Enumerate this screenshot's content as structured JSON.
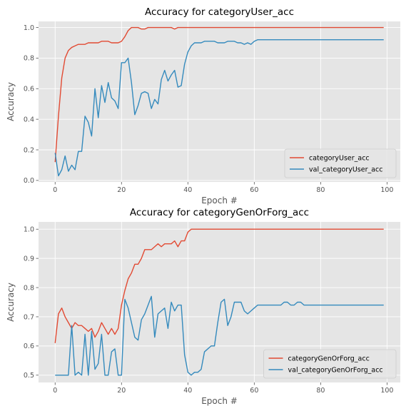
{
  "chart_data": [
    {
      "type": "line",
      "title": "Accuracy for categoryUser_acc",
      "xlabel": "Epoch #",
      "ylabel": "Accuracy",
      "xlim": [
        -5,
        104
      ],
      "ylim": [
        -0.01,
        1.04
      ],
      "xticks": [
        0,
        20,
        40,
        60,
        80,
        100
      ],
      "yticks": [
        0.0,
        0.2,
        0.4,
        0.6,
        0.8,
        1.0
      ],
      "grid": true,
      "legend_position": "lower-right",
      "series": [
        {
          "name": "categoryUser_acc",
          "color": "#E24A33",
          "values": [
            0.12,
            0.42,
            0.67,
            0.8,
            0.85,
            0.87,
            0.88,
            0.89,
            0.89,
            0.89,
            0.9,
            0.9,
            0.9,
            0.9,
            0.91,
            0.91,
            0.91,
            0.9,
            0.9,
            0.9,
            0.91,
            0.94,
            0.98,
            1.0,
            1.0,
            1.0,
            0.99,
            0.99,
            1.0,
            1.0,
            1.0,
            1.0,
            1.0,
            1.0,
            1.0,
            1.0,
            0.99,
            1.0,
            1.0,
            1.0,
            1.0,
            1.0,
            1.0,
            1.0,
            1.0,
            1.0,
            1.0,
            1.0,
            1.0,
            1.0,
            1.0,
            1.0,
            1.0,
            1.0,
            1.0,
            1.0,
            1.0,
            1.0,
            1.0,
            1.0,
            1.0,
            1.0,
            1.0,
            1.0,
            1.0,
            1.0,
            1.0,
            1.0,
            1.0,
            1.0,
            1.0,
            1.0,
            1.0,
            1.0,
            1.0,
            1.0,
            1.0,
            1.0,
            1.0,
            1.0,
            1.0,
            1.0,
            1.0,
            1.0,
            1.0,
            1.0,
            1.0,
            1.0,
            1.0,
            1.0,
            1.0,
            1.0,
            1.0,
            1.0,
            1.0,
            1.0,
            1.0,
            1.0,
            1.0,
            1.0
          ]
        },
        {
          "name": "val_categoryUser_acc",
          "color": "#348ABD",
          "values": [
            0.18,
            0.03,
            0.07,
            0.16,
            0.06,
            0.1,
            0.07,
            0.19,
            0.19,
            0.42,
            0.38,
            0.29,
            0.6,
            0.41,
            0.62,
            0.51,
            0.64,
            0.54,
            0.52,
            0.47,
            0.77,
            0.77,
            0.8,
            0.64,
            0.43,
            0.49,
            0.57,
            0.58,
            0.57,
            0.47,
            0.53,
            0.5,
            0.66,
            0.72,
            0.65,
            0.69,
            0.72,
            0.61,
            0.62,
            0.76,
            0.84,
            0.88,
            0.9,
            0.9,
            0.9,
            0.91,
            0.91,
            0.91,
            0.91,
            0.9,
            0.9,
            0.9,
            0.91,
            0.91,
            0.91,
            0.9,
            0.9,
            0.89,
            0.9,
            0.89,
            0.91,
            0.92,
            0.92,
            0.92,
            0.92,
            0.92,
            0.92,
            0.92,
            0.92,
            0.92,
            0.92,
            0.92,
            0.92,
            0.92,
            0.92,
            0.92,
            0.92,
            0.92,
            0.92,
            0.92,
            0.92,
            0.92,
            0.92,
            0.92,
            0.92,
            0.92,
            0.92,
            0.92,
            0.92,
            0.92,
            0.92,
            0.92,
            0.92,
            0.92,
            0.92,
            0.92,
            0.92,
            0.92,
            0.92,
            0.92
          ]
        }
      ]
    },
    {
      "type": "line",
      "title": "Accuracy for categoryGenOrForg_acc",
      "xlabel": "Epoch #",
      "ylabel": "Accuracy",
      "xlim": [
        -5,
        104
      ],
      "ylim": [
        0.475,
        1.025
      ],
      "xticks": [
        0,
        20,
        40,
        60,
        80,
        100
      ],
      "yticks": [
        0.5,
        0.6,
        0.7,
        0.8,
        0.9,
        1.0
      ],
      "grid": true,
      "legend_position": "lower-right",
      "series": [
        {
          "name": "categoryGenOrForg_acc",
          "color": "#E24A33",
          "values": [
            0.61,
            0.71,
            0.73,
            0.7,
            0.68,
            0.66,
            0.68,
            0.67,
            0.67,
            0.66,
            0.65,
            0.66,
            0.63,
            0.65,
            0.68,
            0.66,
            0.64,
            0.66,
            0.64,
            0.66,
            0.74,
            0.79,
            0.83,
            0.85,
            0.88,
            0.88,
            0.9,
            0.93,
            0.93,
            0.93,
            0.94,
            0.95,
            0.94,
            0.95,
            0.95,
            0.95,
            0.96,
            0.94,
            0.96,
            0.96,
            0.99,
            1.0,
            1.0,
            1.0,
            1.0,
            1.0,
            1.0,
            1.0,
            1.0,
            1.0,
            1.0,
            1.0,
            1.0,
            1.0,
            1.0,
            1.0,
            1.0,
            1.0,
            1.0,
            1.0,
            1.0,
            1.0,
            1.0,
            1.0,
            1.0,
            1.0,
            1.0,
            1.0,
            1.0,
            1.0,
            1.0,
            1.0,
            1.0,
            1.0,
            1.0,
            1.0,
            1.0,
            1.0,
            1.0,
            1.0,
            1.0,
            1.0,
            1.0,
            1.0,
            1.0,
            1.0,
            1.0,
            1.0,
            1.0,
            1.0,
            1.0,
            1.0,
            1.0,
            1.0,
            1.0,
            1.0,
            1.0,
            1.0,
            1.0,
            1.0
          ]
        },
        {
          "name": "val_categoryGenOrForg_acc",
          "color": "#348ABD",
          "values": [
            0.5,
            0.5,
            0.5,
            0.5,
            0.5,
            0.67,
            0.5,
            0.51,
            0.5,
            0.64,
            0.5,
            0.65,
            0.52,
            0.54,
            0.64,
            0.5,
            0.5,
            0.58,
            0.59,
            0.5,
            0.5,
            0.76,
            0.73,
            0.68,
            0.63,
            0.62,
            0.69,
            0.71,
            0.74,
            0.77,
            0.63,
            0.71,
            0.72,
            0.73,
            0.66,
            0.75,
            0.72,
            0.74,
            0.74,
            0.57,
            0.51,
            0.5,
            0.51,
            0.51,
            0.52,
            0.58,
            0.59,
            0.6,
            0.6,
            0.68,
            0.75,
            0.76,
            0.67,
            0.7,
            0.75,
            0.75,
            0.75,
            0.72,
            0.71,
            0.72,
            0.73,
            0.74,
            0.74,
            0.74,
            0.74,
            0.74,
            0.74,
            0.74,
            0.74,
            0.75,
            0.75,
            0.74,
            0.74,
            0.75,
            0.75,
            0.74,
            0.74,
            0.74,
            0.74,
            0.74,
            0.74,
            0.74,
            0.74,
            0.74,
            0.74,
            0.74,
            0.74,
            0.74,
            0.74,
            0.74,
            0.74,
            0.74,
            0.74,
            0.74,
            0.74,
            0.74,
            0.74,
            0.74,
            0.74,
            0.74
          ]
        }
      ]
    }
  ]
}
